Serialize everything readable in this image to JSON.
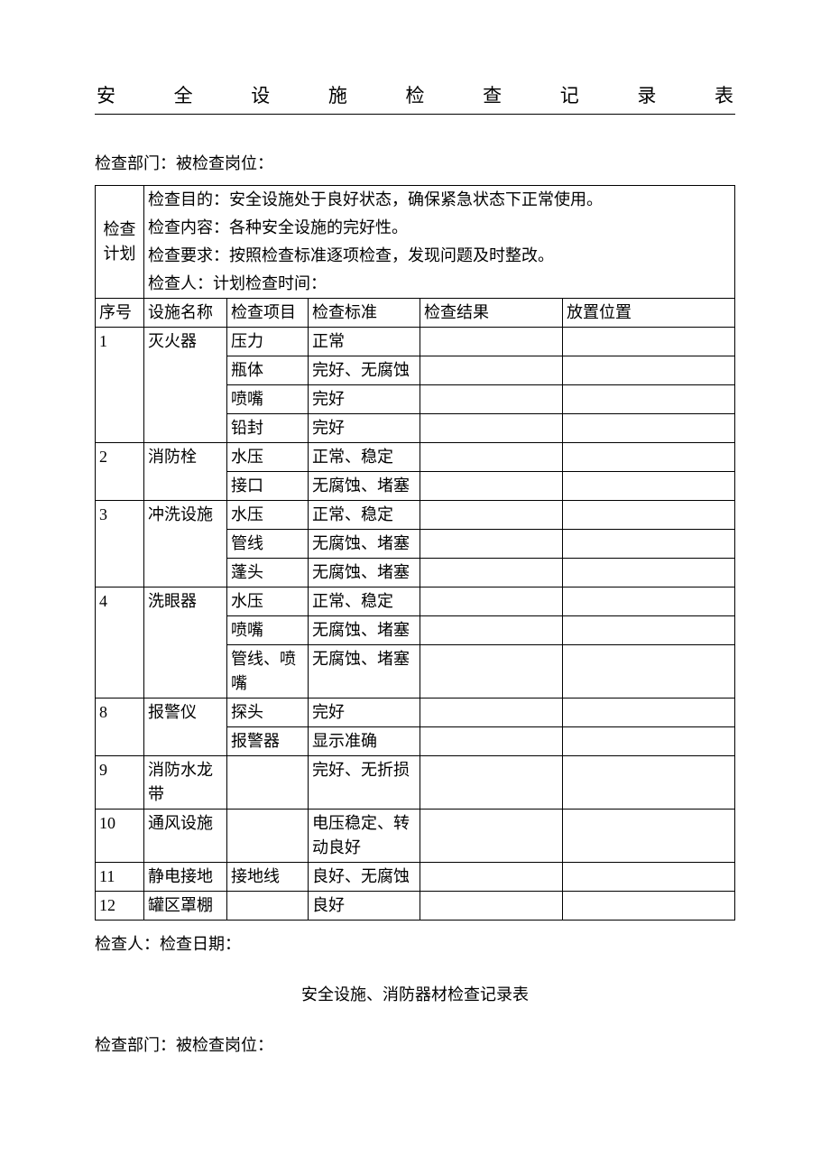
{
  "title": "安全设施检查记录表",
  "meta_top": "检查部门：被检查岗位：",
  "plan_label": "检查计划",
  "plan_lines": {
    "l1": "检查目的：安全设施处于良好状态，确保紧急状态下正常使用。",
    "l2": "检查内容：各种安全设施的完好性。",
    "l3": "检查要求：按照检查标准逐项检查，发现问题及时整改。",
    "l4": "检查人：计划检查时间："
  },
  "headers": {
    "seq": "序号",
    "name": "设施名称",
    "item": "检查项目",
    "std": "检查标准",
    "result": "检查结果",
    "pos": "放置位置"
  },
  "rows": [
    {
      "seq": "1",
      "name": "灭火器",
      "item": "压力",
      "std": "正常",
      "span": 4
    },
    {
      "seq": "",
      "name": "",
      "item": "瓶体",
      "std": "完好、无腐蚀"
    },
    {
      "seq": "",
      "name": "",
      "item": "喷嘴",
      "std": "完好"
    },
    {
      "seq": "",
      "name": "",
      "item": "铅封",
      "std": "完好"
    },
    {
      "seq": "2",
      "name": "消防栓",
      "item": "水压",
      "std": "正常、稳定",
      "span": 2
    },
    {
      "seq": "",
      "name": "",
      "item": "接口",
      "std": "无腐蚀、堵塞"
    },
    {
      "seq": "3",
      "name": "冲洗设施",
      "item": "水压",
      "std": "正常、稳定",
      "span": 3
    },
    {
      "seq": "",
      "name": "",
      "item": "管线",
      "std": "无腐蚀、堵塞"
    },
    {
      "seq": "",
      "name": "",
      "item": "蓬头",
      "std": "无腐蚀、堵塞"
    },
    {
      "seq": "4",
      "name": "洗眼器",
      "item": "水压",
      "std": "正常、稳定",
      "span": 3
    },
    {
      "seq": "",
      "name": "",
      "item": "喷嘴",
      "std": "无腐蚀、堵塞"
    },
    {
      "seq": "",
      "name": "",
      "item": "管线、喷嘴",
      "std": "无腐蚀、堵塞"
    },
    {
      "seq": "8",
      "name": "报警仪",
      "item": "探头",
      "std": "完好",
      "span": 2
    },
    {
      "seq": "",
      "name": "",
      "item": "报警器",
      "std": "显示准确"
    },
    {
      "seq": "9",
      "name": "消防水龙带",
      "item": "",
      "std": "完好、无折损",
      "span": 1
    },
    {
      "seq": "10",
      "name": "通风设施",
      "item": "",
      "std": "电压稳定、转动良好",
      "span": 1
    },
    {
      "seq": "11",
      "name": "静电接地",
      "item": "接地线",
      "std": "良好、无腐蚀",
      "span": 1
    },
    {
      "seq": "12",
      "name": "罐区罩棚",
      "item": "",
      "std": "良好",
      "span": 1
    }
  ],
  "footer": "检查人：检查日期：",
  "subtitle": "安全设施、消防器材检查记录表",
  "meta_bottom": "检查部门：被检查岗位："
}
